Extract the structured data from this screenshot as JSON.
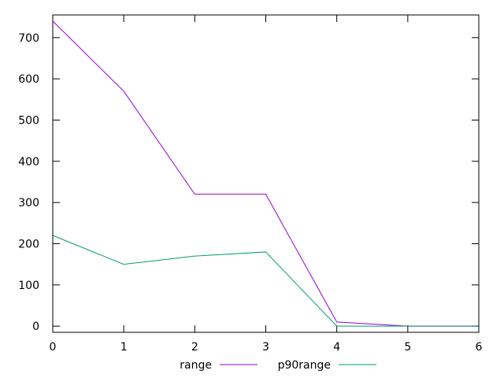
{
  "chart_data": {
    "type": "line",
    "title": "",
    "xlabel": "",
    "ylabel": "",
    "x": [
      0,
      1,
      2,
      3,
      4,
      5,
      6
    ],
    "xlim": [
      0,
      6
    ],
    "ylim": [
      -15,
      755
    ],
    "xticks": [
      "0",
      "1",
      "2",
      "3",
      "4",
      "5",
      "6"
    ],
    "yticks": [
      "0",
      "100",
      "200",
      "300",
      "400",
      "500",
      "600",
      "700"
    ],
    "grid": false,
    "legend_position": "bottom",
    "series": [
      {
        "name": "range",
        "color": "#9400d3",
        "values": [
          740,
          570,
          320,
          320,
          10,
          0,
          0
        ]
      },
      {
        "name": "p90range",
        "color": "#009e73",
        "values": [
          220,
          150,
          170,
          180,
          0,
          0,
          0
        ]
      }
    ]
  }
}
